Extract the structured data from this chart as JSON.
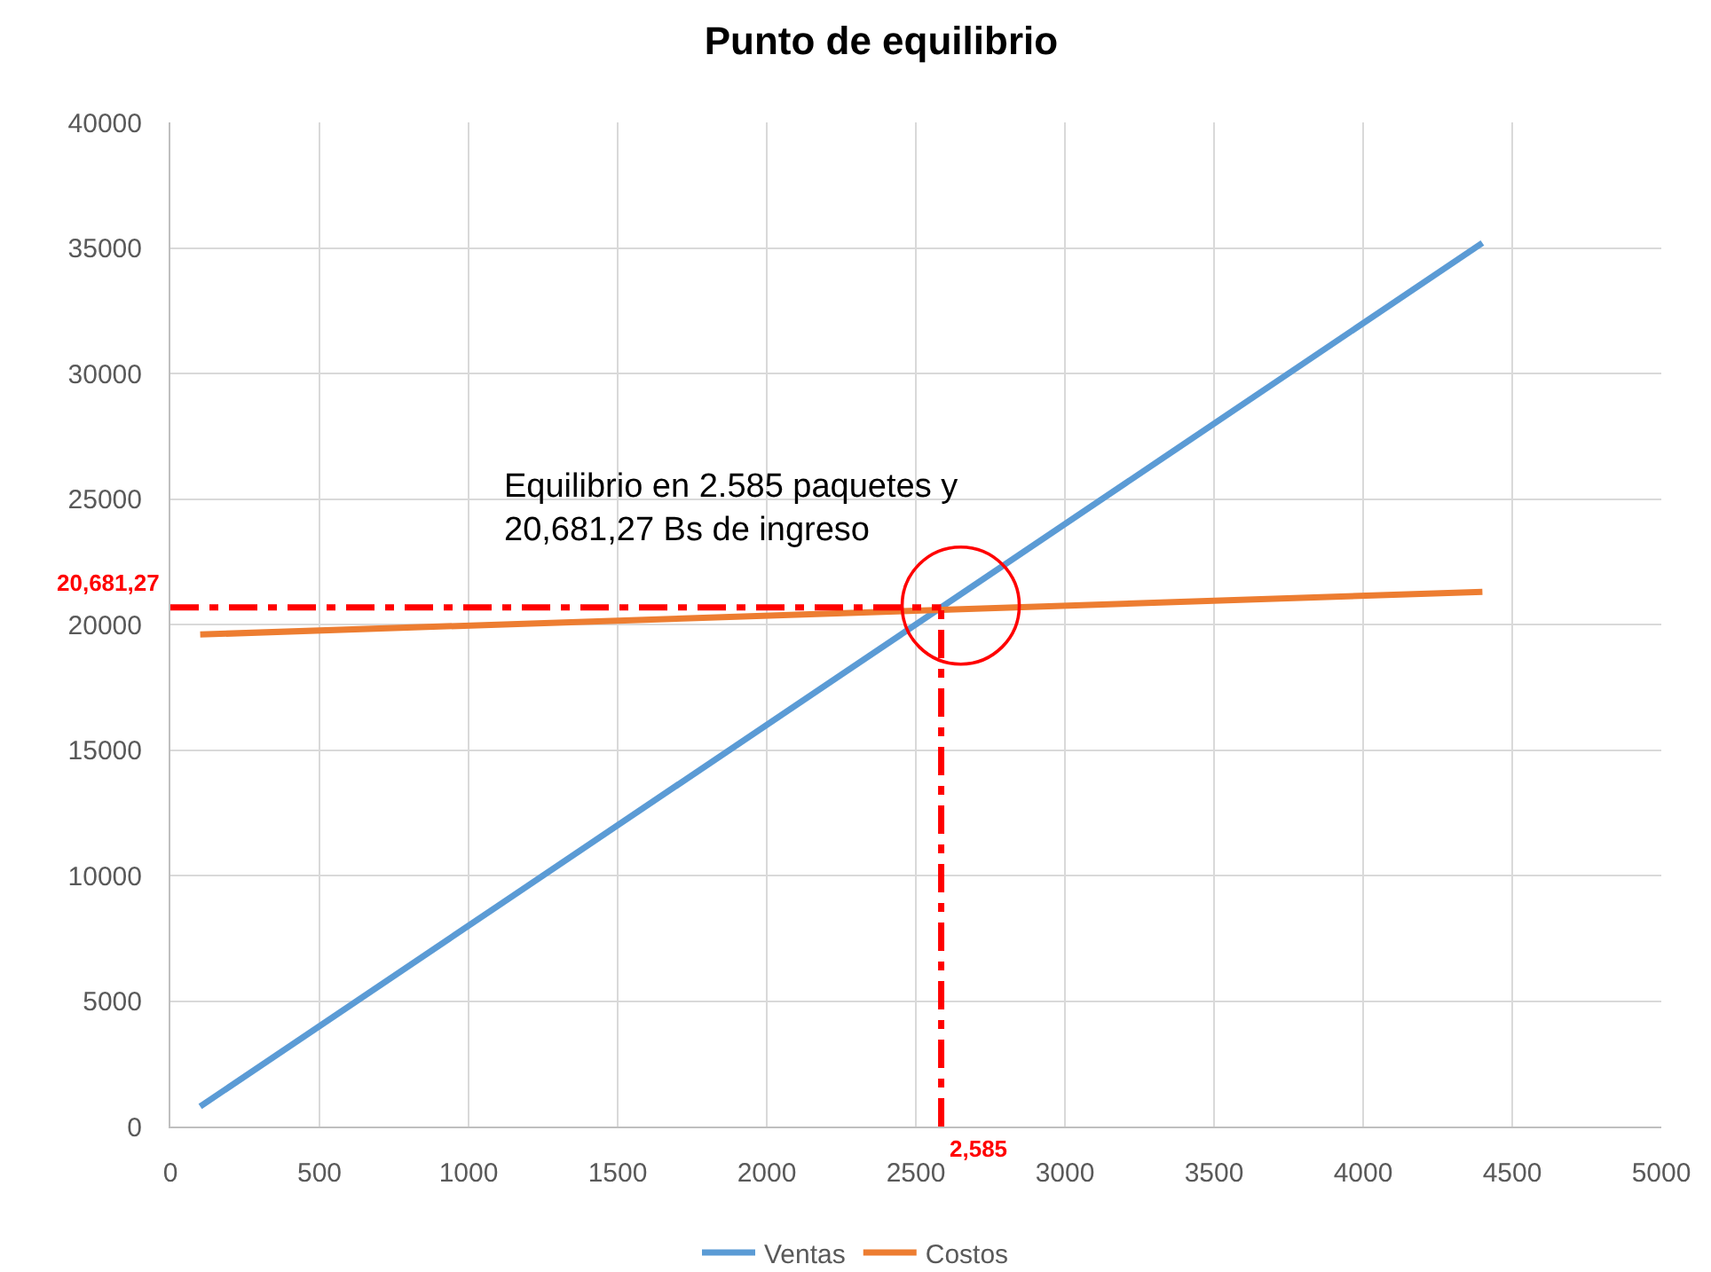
{
  "chart_data": {
    "type": "line",
    "title": "Punto de equilibrio",
    "x": [
      100,
      4400
    ],
    "series": [
      {
        "name": "Ventas",
        "color": "#5b9bd5",
        "values": [
          800,
          35200
        ]
      },
      {
        "name": "Costos",
        "color": "#ed7d31",
        "values": [
          19600,
          21300
        ]
      }
    ],
    "xlim": [
      0,
      5000
    ],
    "xticks": [
      0,
      500,
      1000,
      1500,
      2000,
      2500,
      3000,
      3500,
      4000,
      4500,
      5000
    ],
    "ylim": [
      0,
      40000
    ],
    "yticks": [
      0,
      5000,
      10000,
      15000,
      20000,
      25000,
      30000,
      35000,
      40000
    ],
    "grid": true,
    "legend": "bottom",
    "line_style": "solid",
    "ref_lines": [
      {
        "axis": "y",
        "value": 20681.27,
        "label": "20,681,27",
        "color": "#ff0000",
        "line_style": "dashdot"
      },
      {
        "axis": "x",
        "value": 2585,
        "label": "2,585",
        "color": "#ff0000",
        "line_style": "dashdot"
      }
    ],
    "annotations": [
      {
        "text": "Equilibrio en 2.585 paquetes y\n20,681,27 Bs de ingreso",
        "x": 2585,
        "y": 20681.27
      }
    ]
  }
}
